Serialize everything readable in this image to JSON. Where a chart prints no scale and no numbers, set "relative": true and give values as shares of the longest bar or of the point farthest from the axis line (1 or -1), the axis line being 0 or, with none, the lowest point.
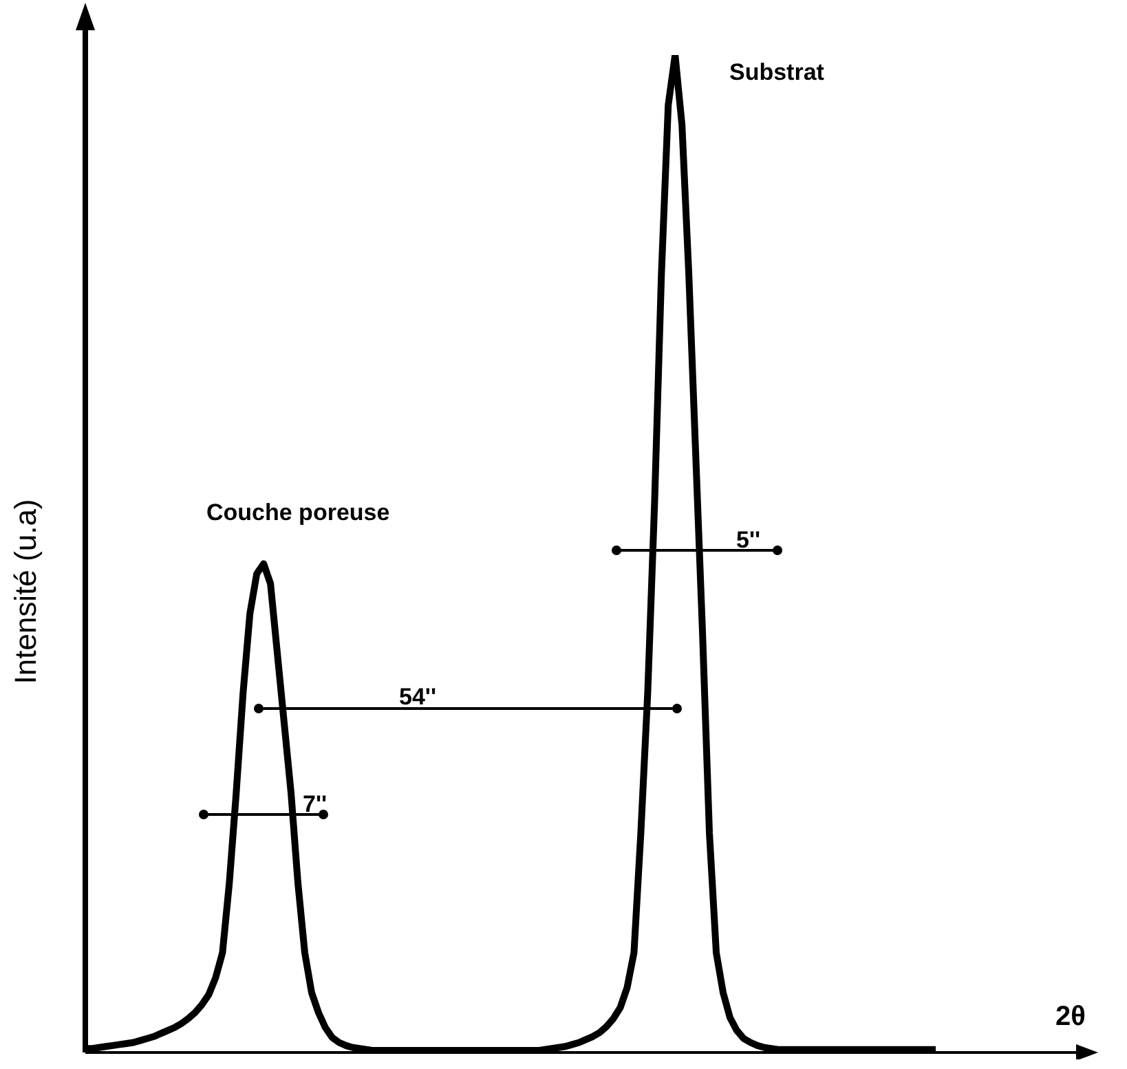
{
  "chart_data": {
    "type": "line",
    "relative": true,
    "xlabel": "2θ",
    "ylabel": "Intensité (u.a)",
    "color": "#000000",
    "marker": "none",
    "line_style": "solid",
    "categories": [
      null,
      null,
      null,
      null,
      null,
      null,
      null,
      null,
      null,
      null,
      null,
      null,
      null,
      null,
      null,
      null,
      null,
      null,
      null,
      null,
      null,
      null,
      null,
      null,
      null,
      null,
      null,
      null,
      null,
      null,
      null,
      null,
      null,
      null,
      null,
      null,
      null,
      null,
      null,
      null,
      null,
      null,
      null,
      null,
      null,
      null,
      null,
      null,
      null,
      null,
      null,
      null,
      null,
      null,
      null,
      null,
      null,
      null,
      null,
      null,
      null,
      null,
      null,
      null,
      null,
      null,
      null,
      null,
      null,
      null,
      null,
      null,
      null,
      null,
      null,
      null,
      null,
      null,
      null,
      null,
      null,
      null,
      null,
      null,
      null,
      null,
      null,
      null,
      null,
      null,
      null,
      null,
      null,
      null,
      null,
      null,
      null,
      null,
      null,
      null,
      null,
      null,
      null,
      null,
      null,
      null,
      null,
      null,
      null,
      null,
      null,
      null,
      null,
      null,
      null,
      null,
      null,
      null,
      null,
      null,
      null,
      null,
      null,
      null,
      null
    ],
    "values": [
      0.004,
      0.004,
      0.005,
      0.006,
      0.007,
      0.008,
      0.009,
      0.01,
      0.012,
      0.014,
      0.016,
      0.019,
      0.022,
      0.025,
      0.029,
      0.034,
      0.04,
      0.048,
      0.058,
      0.075,
      0.1,
      0.17,
      0.26,
      0.36,
      0.44,
      0.48,
      0.49,
      0.47,
      0.4,
      0.33,
      0.26,
      0.17,
      0.1,
      0.06,
      0.04,
      0.025,
      0.015,
      0.01,
      0.007,
      0.005,
      0.004,
      0.003,
      0.002,
      0.002,
      0.002,
      0.002,
      0.002,
      0.002,
      0.002,
      0.002,
      0.002,
      0.002,
      0.002,
      0.002,
      0.002,
      0.002,
      0.002,
      0.002,
      0.002,
      0.002,
      0.002,
      0.002,
      0.002,
      0.002,
      0.002,
      0.002,
      0.002,
      0.003,
      0.004,
      0.005,
      0.006,
      0.008,
      0.01,
      0.013,
      0.016,
      0.02,
      0.026,
      0.034,
      0.045,
      0.065,
      0.1,
      0.22,
      0.36,
      0.55,
      0.78,
      0.95,
      1,
      0.93,
      0.78,
      0.6,
      0.42,
      0.22,
      0.1,
      0.06,
      0.035,
      0.022,
      0.014,
      0.01,
      0.007,
      0.005,
      0.004,
      0.003,
      0.003,
      0.003,
      0.003,
      0.003,
      0.003,
      0.003,
      0.003,
      0.003,
      0.003,
      0.003,
      0.003,
      0.003,
      0.003,
      0.003,
      0.003,
      0.003,
      0.003,
      0.003,
      0.003,
      0.003,
      0.003,
      0.003,
      0.003
    ],
    "annotations": [
      "Couche poreuse",
      "Substrat",
      "5''",
      "54''",
      "7''"
    ]
  }
}
